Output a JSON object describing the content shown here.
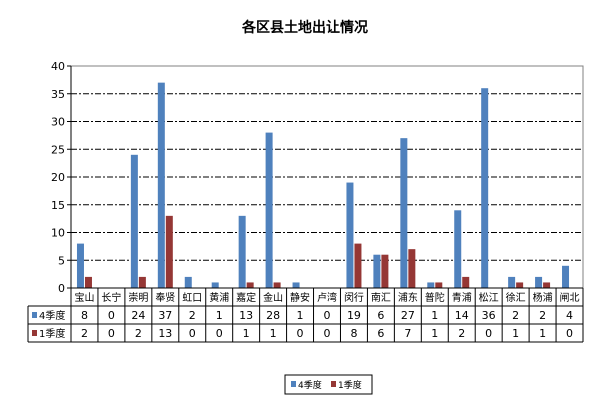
{
  "chart_data": {
    "type": "bar",
    "title": "各区县土地出让情况",
    "categories": [
      "宝山",
      "长宁",
      "崇明",
      "奉贤",
      "虹口",
      "黄浦",
      "嘉定",
      "金山",
      "静安",
      "卢湾",
      "闵行",
      "南汇",
      "浦东",
      "普陀",
      "青浦",
      "松江",
      "徐汇",
      "杨浦",
      "闸北"
    ],
    "series": [
      {
        "name": "4季度",
        "color": "#4f81bd",
        "values": [
          8,
          0,
          24,
          37,
          2,
          1,
          13,
          28,
          1,
          0,
          19,
          6,
          27,
          1,
          14,
          36,
          2,
          2,
          4
        ]
      },
      {
        "name": "1季度",
        "color": "#953735",
        "values": [
          2,
          0,
          2,
          13,
          0,
          0,
          1,
          1,
          0,
          0,
          8,
          6,
          7,
          1,
          2,
          0,
          1,
          1,
          0
        ]
      }
    ],
    "ylim": [
      0,
      40
    ],
    "yticks": [
      0,
      5,
      10,
      15,
      20,
      25,
      30,
      35,
      40
    ],
    "grid": true,
    "legend": "bottom",
    "data_table": true
  }
}
